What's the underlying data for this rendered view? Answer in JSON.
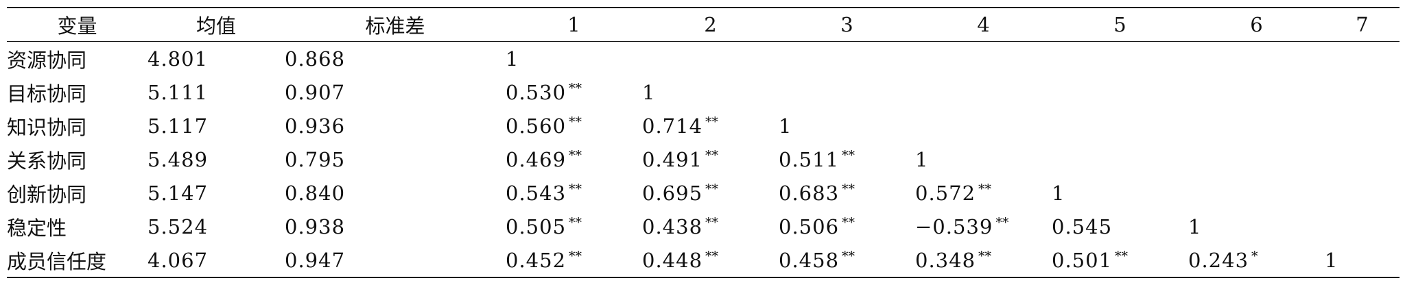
{
  "table": {
    "headers": [
      "变量",
      "均值",
      "标准差",
      "1",
      "2",
      "3",
      "4",
      "5",
      "6",
      "7"
    ],
    "rows": [
      {
        "variable": "资源协同",
        "mean": "4.801",
        "sd": "0.868",
        "cells": [
          {
            "value": "1",
            "sig": ""
          },
          {
            "value": "",
            "sig": ""
          },
          {
            "value": "",
            "sig": ""
          },
          {
            "value": "",
            "sig": ""
          },
          {
            "value": "",
            "sig": ""
          },
          {
            "value": "",
            "sig": ""
          },
          {
            "value": "",
            "sig": ""
          }
        ]
      },
      {
        "variable": "目标协同",
        "mean": "5.111",
        "sd": "0.907",
        "cells": [
          {
            "value": "0.530",
            "sig": "**"
          },
          {
            "value": "1",
            "sig": ""
          },
          {
            "value": "",
            "sig": ""
          },
          {
            "value": "",
            "sig": ""
          },
          {
            "value": "",
            "sig": ""
          },
          {
            "value": "",
            "sig": ""
          },
          {
            "value": "",
            "sig": ""
          }
        ]
      },
      {
        "variable": "知识协同",
        "mean": "5.117",
        "sd": "0.936",
        "cells": [
          {
            "value": "0.560",
            "sig": "**"
          },
          {
            "value": "0.714",
            "sig": "**"
          },
          {
            "value": "1",
            "sig": ""
          },
          {
            "value": "",
            "sig": ""
          },
          {
            "value": "",
            "sig": ""
          },
          {
            "value": "",
            "sig": ""
          },
          {
            "value": "",
            "sig": ""
          }
        ]
      },
      {
        "variable": "关系协同",
        "mean": "5.489",
        "sd": "0.795",
        "cells": [
          {
            "value": "0.469",
            "sig": "**"
          },
          {
            "value": "0.491",
            "sig": "**"
          },
          {
            "value": "0.511",
            "sig": "**"
          },
          {
            "value": "1",
            "sig": ""
          },
          {
            "value": "",
            "sig": ""
          },
          {
            "value": "",
            "sig": ""
          },
          {
            "value": "",
            "sig": ""
          }
        ]
      },
      {
        "variable": "创新协同",
        "mean": "5.147",
        "sd": "0.840",
        "cells": [
          {
            "value": "0.543",
            "sig": "**"
          },
          {
            "value": "0.695",
            "sig": "**"
          },
          {
            "value": "0.683",
            "sig": "**"
          },
          {
            "value": "0.572",
            "sig": "**"
          },
          {
            "value": "1",
            "sig": ""
          },
          {
            "value": "",
            "sig": ""
          },
          {
            "value": "",
            "sig": ""
          }
        ]
      },
      {
        "variable": "稳定性",
        "mean": "5.524",
        "sd": "0.938",
        "cells": [
          {
            "value": "0.505",
            "sig": "**"
          },
          {
            "value": "0.438",
            "sig": "**"
          },
          {
            "value": "0.506",
            "sig": "**"
          },
          {
            "value": "−0.539",
            "sig": "**"
          },
          {
            "value": "0.545",
            "sig": ""
          },
          {
            "value": "1",
            "sig": ""
          },
          {
            "value": "",
            "sig": ""
          }
        ]
      },
      {
        "variable": "成员信任度",
        "mean": "4.067",
        "sd": "0.947",
        "cells": [
          {
            "value": "0.452",
            "sig": "**"
          },
          {
            "value": "0.448",
            "sig": "**"
          },
          {
            "value": "0.458",
            "sig": "**"
          },
          {
            "value": "0.348",
            "sig": "**"
          },
          {
            "value": "0.501",
            "sig": "**"
          },
          {
            "value": "0.243",
            "sig": "*"
          },
          {
            "value": "1",
            "sig": ""
          }
        ]
      }
    ]
  }
}
